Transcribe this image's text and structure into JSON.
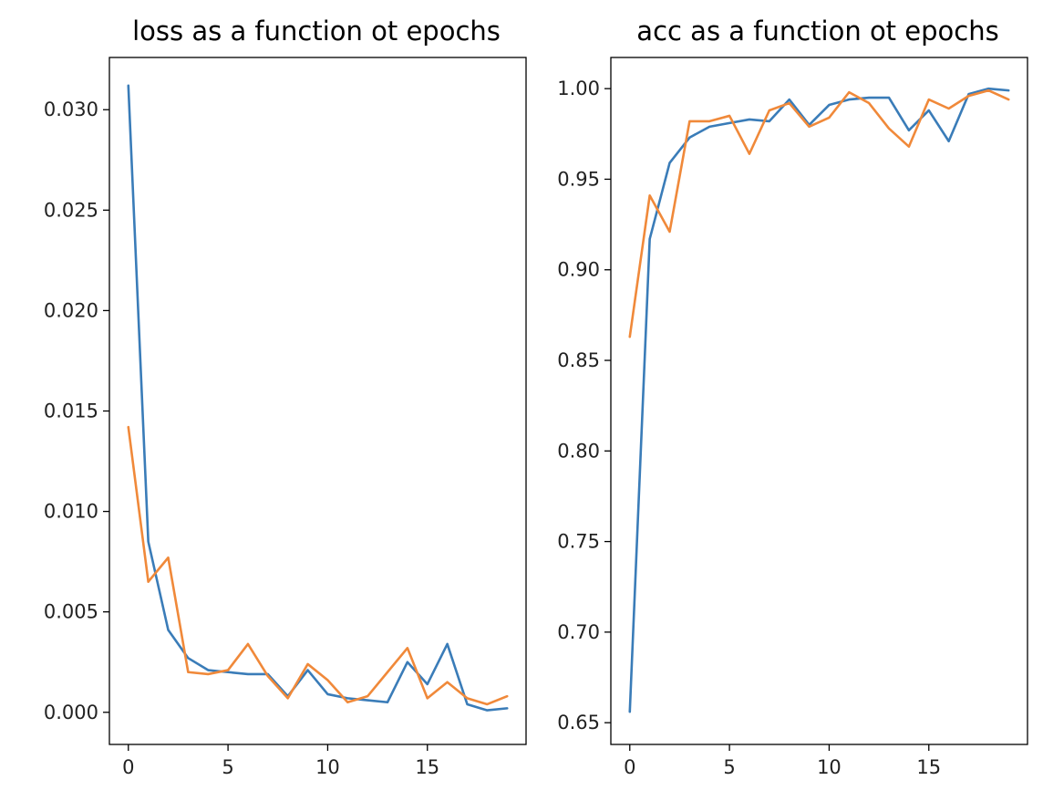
{
  "chart_data": [
    {
      "type": "line",
      "title": "loss as a function ot epochs",
      "xlabel": "",
      "ylabel": "",
      "xlim": [
        -0.95,
        19.95
      ],
      "ylim": [
        -0.0016,
        0.0326
      ],
      "x_ticks": [
        0,
        5,
        10,
        15
      ],
      "x_tick_labels": [
        "0",
        "5",
        "10",
        "15"
      ],
      "y_ticks": [
        0.0,
        0.005,
        0.01,
        0.015,
        0.02,
        0.025,
        0.03
      ],
      "y_tick_labels": [
        "0.000",
        "0.005",
        "0.010",
        "0.015",
        "0.020",
        "0.025",
        "0.030"
      ],
      "grid": false,
      "legend": "none",
      "x": [
        0,
        1,
        2,
        3,
        4,
        5,
        6,
        7,
        8,
        9,
        10,
        11,
        12,
        13,
        14,
        15,
        16,
        17,
        18,
        19
      ],
      "series": [
        {
          "color": "#3a7cb8",
          "values": [
            0.0312,
            0.0085,
            0.0041,
            0.0027,
            0.0021,
            0.002,
            0.0019,
            0.0019,
            0.0008,
            0.0021,
            0.0009,
            0.0007,
            0.0006,
            0.0005,
            0.0025,
            0.0014,
            0.0034,
            0.0004,
            0.0001,
            0.0002
          ]
        },
        {
          "color": "#f0893a",
          "values": [
            0.0142,
            0.0065,
            0.0077,
            0.002,
            0.0019,
            0.0021,
            0.0034,
            0.0018,
            0.0007,
            0.0024,
            0.0016,
            0.0005,
            0.0008,
            0.002,
            0.0032,
            0.0007,
            0.0015,
            0.0007,
            0.0004,
            0.0008
          ]
        }
      ]
    },
    {
      "type": "line",
      "title": "acc as a function ot epochs",
      "xlabel": "",
      "ylabel": "",
      "xlim": [
        -0.95,
        19.95
      ],
      "ylim": [
        0.638,
        1.0172
      ],
      "x_ticks": [
        0,
        5,
        10,
        15
      ],
      "x_tick_labels": [
        "0",
        "5",
        "10",
        "15"
      ],
      "y_ticks": [
        0.65,
        0.7,
        0.75,
        0.8,
        0.85,
        0.9,
        0.95,
        1.0
      ],
      "y_tick_labels": [
        "0.65",
        "0.70",
        "0.75",
        "0.80",
        "0.85",
        "0.90",
        "0.95",
        "1.00"
      ],
      "grid": false,
      "legend": "none",
      "x": [
        0,
        1,
        2,
        3,
        4,
        5,
        6,
        7,
        8,
        9,
        10,
        11,
        12,
        13,
        14,
        15,
        16,
        17,
        18,
        19
      ],
      "series": [
        {
          "color": "#3a7cb8",
          "values": [
            0.656,
            0.917,
            0.959,
            0.973,
            0.979,
            0.981,
            0.983,
            0.982,
            0.994,
            0.98,
            0.991,
            0.994,
            0.995,
            0.995,
            0.977,
            0.988,
            0.971,
            0.997,
            1.0,
            0.999
          ]
        },
        {
          "color": "#f0893a",
          "values": [
            0.863,
            0.941,
            0.921,
            0.982,
            0.982,
            0.985,
            0.964,
            0.988,
            0.992,
            0.979,
            0.984,
            0.998,
            0.992,
            0.978,
            0.968,
            0.994,
            0.989,
            0.996,
            0.999,
            0.994
          ]
        }
      ]
    }
  ]
}
